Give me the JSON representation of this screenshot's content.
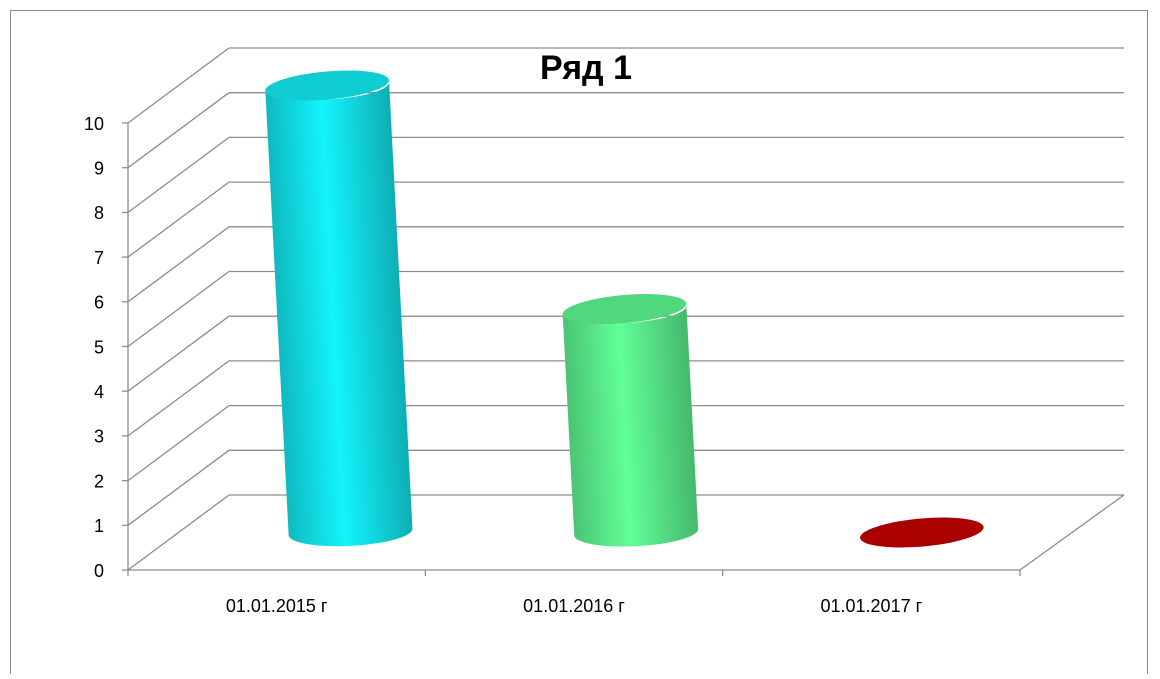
{
  "chart_data": {
    "type": "bar3d",
    "title": "Ряд 1",
    "categories": [
      "01.01.2015 г",
      "01.01.2016 г",
      "01.01.2017 г"
    ],
    "values": [
      10,
      5,
      0
    ],
    "colors": [
      "#12e8f0",
      "#5cf590",
      "#c00000"
    ],
    "ylim": [
      0,
      10
    ],
    "yticks": [
      0,
      1,
      2,
      3,
      4,
      5,
      6,
      7,
      8,
      9,
      10
    ],
    "grid": true
  }
}
